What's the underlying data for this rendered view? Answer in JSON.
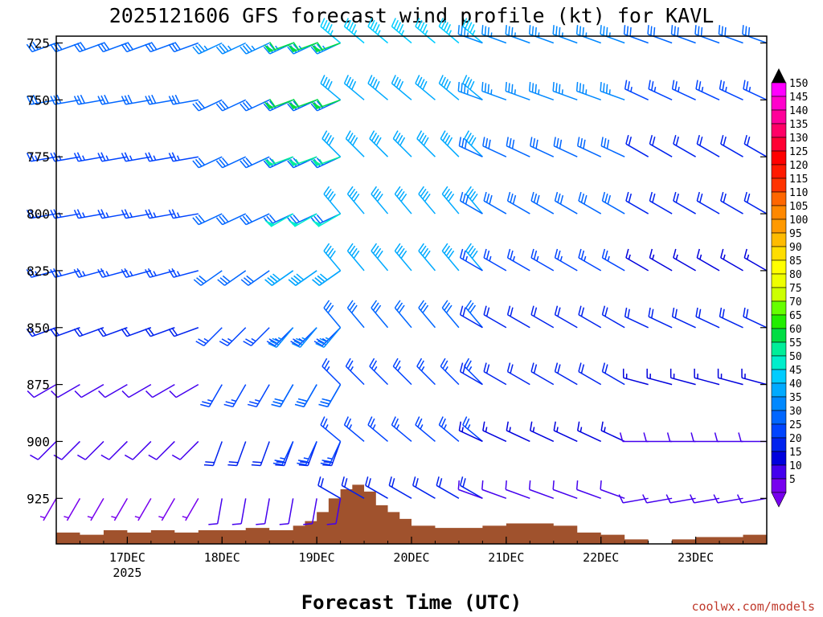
{
  "chart_data": {
    "type": "wind-profile",
    "title": "2025121606 GFS forecast wind profile (kt) for KAVL",
    "xlabel": "Forecast Time (UTC)",
    "credit": "coolwx.com/models",
    "pressure_levels": [
      725,
      750,
      775,
      800,
      825,
      850,
      875,
      900,
      925
    ],
    "y_range": [
      945,
      722
    ],
    "x_ticks": [
      {
        "label": "17DEC",
        "sublabel": "2025",
        "hour": 18
      },
      {
        "label": "18DEC",
        "sublabel": "",
        "hour": 42
      },
      {
        "label": "19DEC",
        "sublabel": "",
        "hour": 66
      },
      {
        "label": "20DEC",
        "sublabel": "",
        "hour": 90
      },
      {
        "label": "21DEC",
        "sublabel": "",
        "hour": 114
      },
      {
        "label": "22DEC",
        "sublabel": "",
        "hour": 138
      },
      {
        "label": "23DEC",
        "sublabel": "",
        "hour": 162
      }
    ],
    "x_range": [
      0,
      180
    ],
    "time_step_hours": 6,
    "speed_ticks": [
      150,
      145,
      140,
      135,
      130,
      125,
      120,
      115,
      110,
      105,
      100,
      95,
      90,
      85,
      80,
      75,
      70,
      65,
      60,
      55,
      50,
      45,
      40,
      35,
      30,
      25,
      20,
      15,
      10,
      5
    ],
    "speed_colors": [
      "#ff00ff",
      "#ff00cc",
      "#ff0099",
      "#ff0066",
      "#ff0033",
      "#ff0000",
      "#ff1a00",
      "#ff3300",
      "#ff6600",
      "#ff8800",
      "#ff9900",
      "#ffbb00",
      "#ffdd00",
      "#ffff00",
      "#eeff00",
      "#ccff00",
      "#66ff00",
      "#22ee00",
      "#00dd44",
      "#00ee99",
      "#00eecc",
      "#00ccff",
      "#00aaff",
      "#0088ff",
      "#0066ff",
      "#0044ff",
      "#0022ee",
      "#0000dd",
      "#4400ee",
      "#7700ee"
    ],
    "terrain": {
      "color": "#a0522d",
      "hours": [
        0,
        6,
        12,
        18,
        24,
        30,
        36,
        42,
        48,
        54,
        60,
        63,
        66,
        69,
        72,
        75,
        78,
        81,
        84,
        87,
        90,
        96,
        102,
        108,
        114,
        120,
        126,
        132,
        138,
        144,
        150,
        156,
        162,
        168,
        174,
        180
      ],
      "pressure": [
        940,
        941,
        939,
        940,
        939,
        940,
        939,
        939,
        938,
        939,
        937,
        935,
        931,
        925,
        921,
        919,
        922,
        928,
        931,
        934,
        937,
        938,
        938,
        937,
        936,
        936,
        937,
        940,
        941,
        943,
        945,
        943,
        942,
        942,
        941,
        938
      ]
    },
    "wind_segments": [
      {
        "start": 0,
        "end": 36,
        "levels": {
          "725": [
            250,
            30
          ],
          "750": [
            260,
            28
          ],
          "775": [
            260,
            27
          ],
          "800": [
            260,
            26
          ],
          "825": [
            255,
            25
          ],
          "850": [
            250,
            18
          ],
          "875": [
            240,
            12
          ],
          "900": [
            225,
            9
          ],
          "925": [
            210,
            6
          ]
        }
      },
      {
        "start": 42,
        "end": 72,
        "levels": {
          "725": [
            245,
            33
          ],
          "750": [
            245,
            32
          ],
          "775": [
            245,
            31
          ],
          "800": [
            245,
            30
          ],
          "825": [
            235,
            29
          ],
          "850": [
            225,
            27
          ],
          "875": [
            210,
            24
          ],
          "900": [
            200,
            20
          ],
          "925": [
            190,
            10
          ]
        }
      },
      {
        "start": 60,
        "end": 72,
        "levels": {
          "725": [
            250,
            62
          ],
          "750": [
            250,
            58
          ],
          "775": [
            250,
            56
          ],
          "800": [
            240,
            48
          ],
          "825": [
            235,
            42
          ],
          "850": [
            220,
            35
          ],
          "875": [
            210,
            30
          ],
          "900": [
            205,
            25
          ]
        }
      },
      {
        "start": 72,
        "end": 108,
        "levels": {
          "725": [
            310,
            43
          ],
          "750": [
            310,
            42
          ],
          "775": [
            315,
            41
          ],
          "800": [
            320,
            42
          ],
          "825": [
            320,
            38
          ],
          "850": [
            320,
            30
          ],
          "875": [
            315,
            27
          ],
          "900": [
            310,
            25
          ],
          "925": [
            300,
            18
          ]
        }
      },
      {
        "start": 108,
        "end": 144,
        "levels": {
          "725": [
            290,
            36
          ],
          "750": [
            290,
            33
          ],
          "775": [
            295,
            32
          ],
          "800": [
            300,
            30
          ],
          "825": [
            300,
            25
          ],
          "850": [
            300,
            22
          ],
          "875": [
            300,
            18
          ],
          "900": [
            295,
            14
          ],
          "925": [
            290,
            10
          ]
        }
      },
      {
        "start": 150,
        "end": 180,
        "levels": {
          "725": [
            290,
            28
          ],
          "750": [
            295,
            25
          ],
          "775": [
            300,
            22
          ],
          "800": [
            300,
            19
          ],
          "825": [
            300,
            16
          ],
          "850": [
            295,
            18
          ],
          "875": [
            285,
            15
          ],
          "900": [
            270,
            10
          ],
          "925": [
            260,
            9
          ]
        }
      }
    ]
  }
}
